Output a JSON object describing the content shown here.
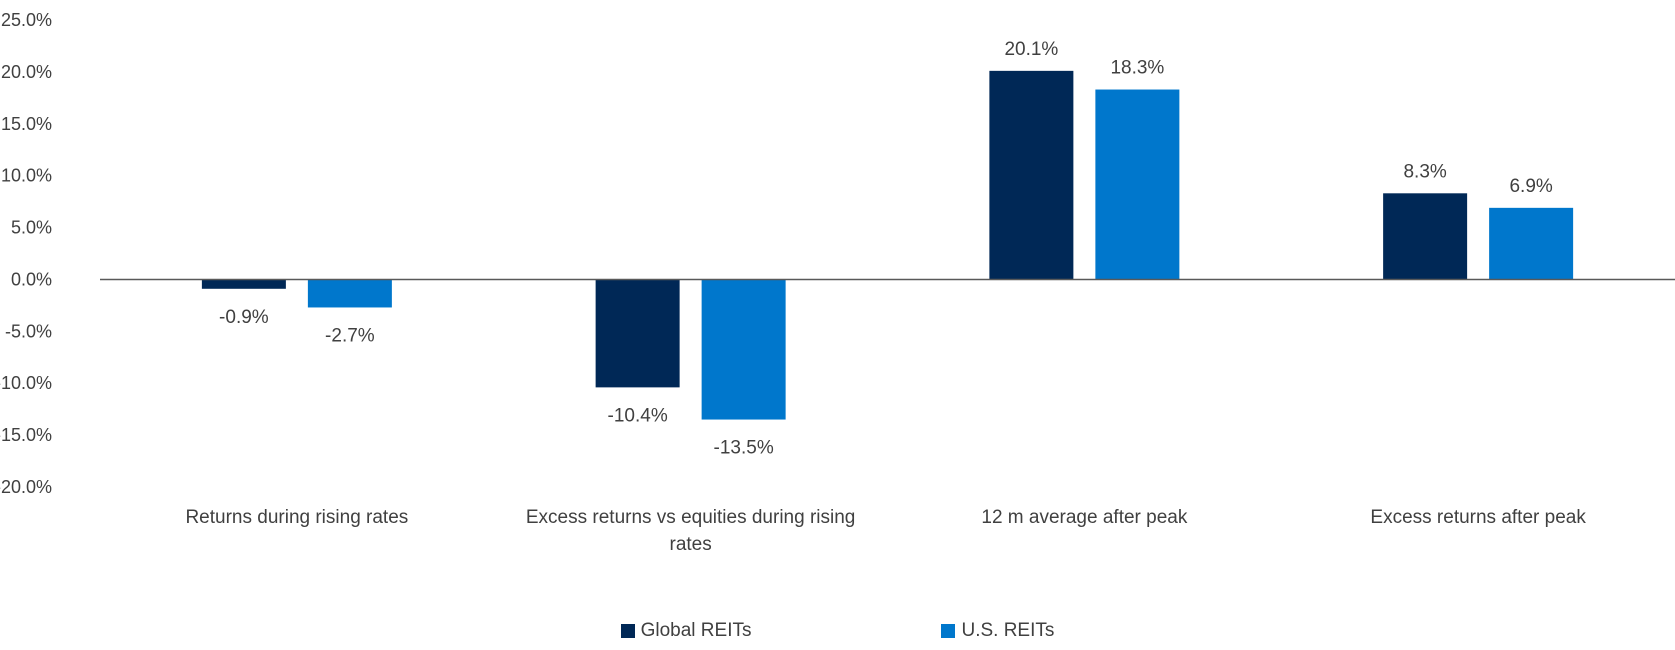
{
  "chart_data": {
    "type": "bar",
    "categories": [
      [
        "Returns during rising rates"
      ],
      [
        "Excess returns vs equities during rising",
        "rates"
      ],
      [
        "12 m average after peak"
      ],
      [
        "Excess returns after peak"
      ]
    ],
    "series": [
      {
        "name": "Global REITs",
        "color": "#002856",
        "values": [
          -0.9,
          -10.4,
          20.1,
          8.3
        ],
        "labels": [
          "-0.9%",
          "-10.4%",
          "20.1%",
          "8.3%"
        ]
      },
      {
        "name": "U.S. REITs",
        "color": "#0077CC",
        "values": [
          -2.7,
          -13.5,
          18.3,
          6.9
        ],
        "labels": [
          "-2.7%",
          "-13.5%",
          "18.3%",
          "6.9%"
        ]
      }
    ],
    "ylim": [
      -20,
      25
    ],
    "yticks": [
      25,
      20,
      15,
      10,
      5,
      0,
      -5,
      -10,
      -15,
      -20
    ],
    "ytick_labels": [
      "25.0%",
      "20.0%",
      "15.0%",
      "10.0%",
      "5.0%",
      "0.0%",
      "-5.0%",
      "-10.0%",
      "-15.0%",
      "-20.0%"
    ],
    "grid": false,
    "legend": "bottom-center"
  }
}
